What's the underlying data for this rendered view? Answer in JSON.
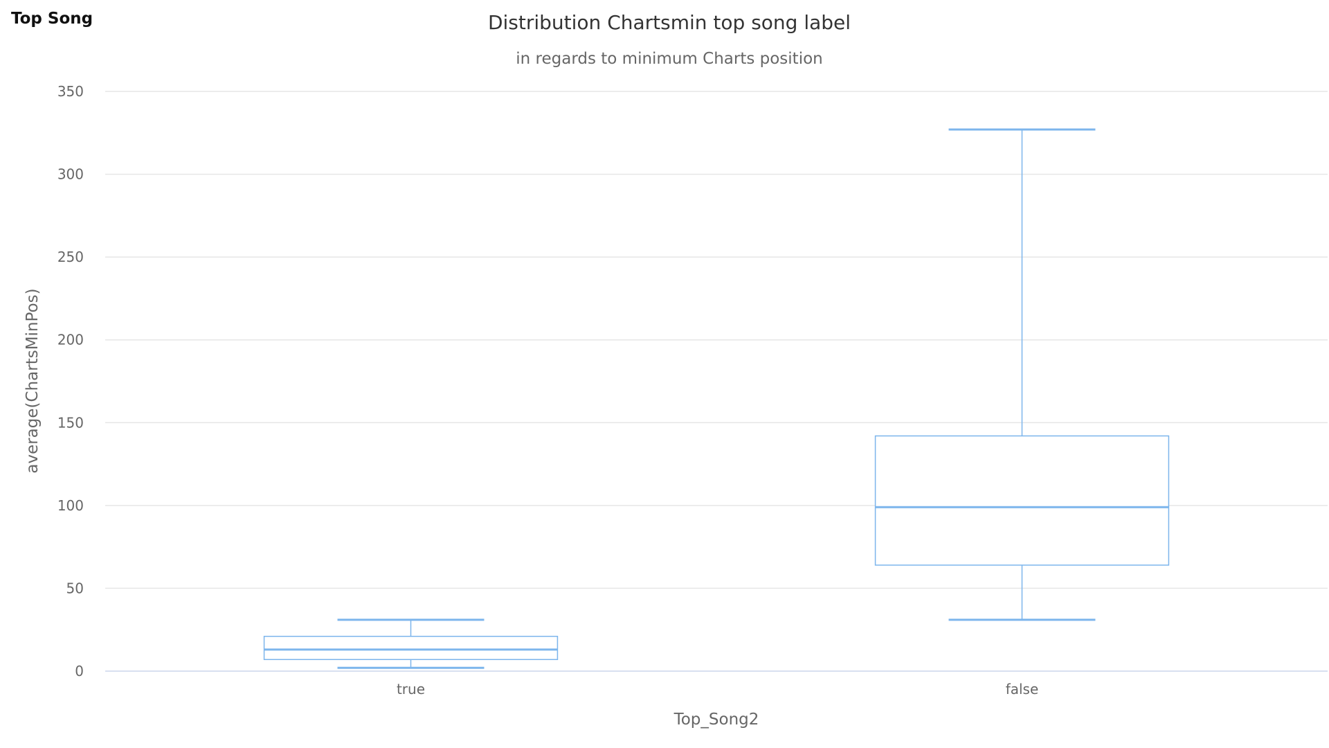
{
  "panel": {
    "title": "Top Song"
  },
  "chart_data": {
    "type": "boxplot",
    "title": "Distribution Chartsmin top song label",
    "subtitle": "in regards to minimum Charts position",
    "xlabel": "Top_Song2",
    "ylabel": "average(ChartsMinPos)",
    "ylim": [
      0,
      350
    ],
    "yticks": [
      0,
      50,
      100,
      150,
      200,
      250,
      300,
      350
    ],
    "grid": true,
    "color": "#7cb5ec",
    "categories": [
      "true",
      "false"
    ],
    "boxes": [
      {
        "category": "true",
        "low": 2,
        "q1": 7,
        "median": 13,
        "q3": 21,
        "high": 31
      },
      {
        "category": "false",
        "low": 31,
        "q1": 64,
        "median": 99,
        "q3": 142,
        "high": 327
      }
    ]
  }
}
